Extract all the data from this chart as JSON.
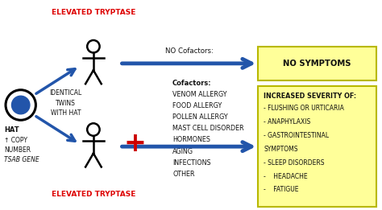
{
  "bg_color": "#ffffff",
  "fig_width": 4.74,
  "fig_height": 2.61,
  "title_top": "ELEVATED TRYPTASE",
  "title_bottom": "ELEVATED TRYPTASE",
  "label_hat_line1": "HAT",
  "label_hat_line2": "↑ COPY",
  "label_hat_line3": "NUMBER",
  "label_hat_line4": "TSAB GENE",
  "label_twins": "IDENTICAL\nTWINS\nWITH HAT",
  "no_cofactors_label": "NO Cofactors:",
  "no_symptoms_label": "NO SYMPTOMS",
  "cofactors_lines": [
    "Cofactors:",
    "VENOM ALLERGY",
    "FOOD ALLERGY",
    "POLLEN ALLERGY",
    "MAST CELL DISORDER",
    "HORMONES",
    "AGING",
    "INFECTIONS",
    "OTHER"
  ],
  "severity_title": "INCREASED SEVERITY OF:",
  "severity_items": [
    "- FLUSHING OR URTICARIA",
    "- ANAPHYLAXIS",
    "- GASTROINTESTINAL",
    "SYMPTOMS",
    "- SLEEP DISORDERS",
    "-    HEADACHE",
    "-    FATIGUE"
  ],
  "arrow_color": "#2255aa",
  "red_color": "#cc0000",
  "yellow_bg": "#ffff99",
  "yellow_border": "#b8b800",
  "text_color_red": "#dd0000",
  "text_color_dark": "#111111"
}
